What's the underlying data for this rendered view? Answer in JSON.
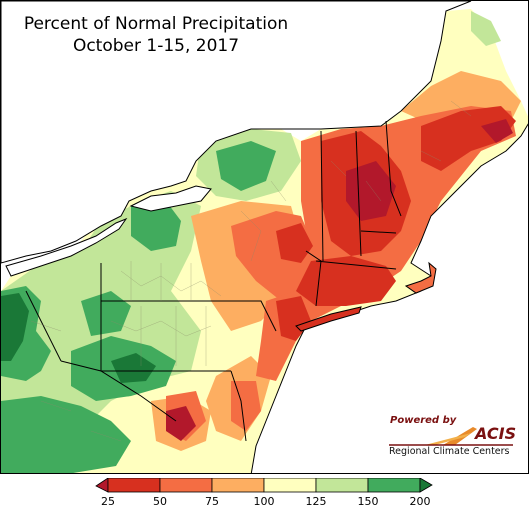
{
  "title": {
    "line1": "Percent of Normal Precipitation",
    "line2": "October 1-15, 2017"
  },
  "legend": {
    "units": "percent of normal",
    "bins": [
      {
        "from": 0,
        "to": 25,
        "color": "#b2182b"
      },
      {
        "from": 25,
        "to": 50,
        "color": "#d7301f"
      },
      {
        "from": 50,
        "to": 75,
        "color": "#f46d43"
      },
      {
        "from": 75,
        "to": 100,
        "color": "#fdae61"
      },
      {
        "from": 100,
        "to": 125,
        "color": "#ffffbf"
      },
      {
        "from": 125,
        "to": 150,
        "color": "#c2e699"
      },
      {
        "from": 150,
        "to": 200,
        "color": "#41ab5d"
      },
      {
        "from": 200,
        "to": null,
        "color": "#1a7837"
      }
    ],
    "tick_labels": [
      "25",
      "50",
      "75",
      "100",
      "125",
      "150",
      "200"
    ]
  },
  "logo": {
    "powered_by": "Powered by",
    "name": "ACIS",
    "subtitle": "Regional Climate Centers"
  },
  "map": {
    "region": "Northeast United States",
    "water_color": "#ffffff",
    "boundary_color": "#000000",
    "county_line_color": "#8a8a6a"
  }
}
